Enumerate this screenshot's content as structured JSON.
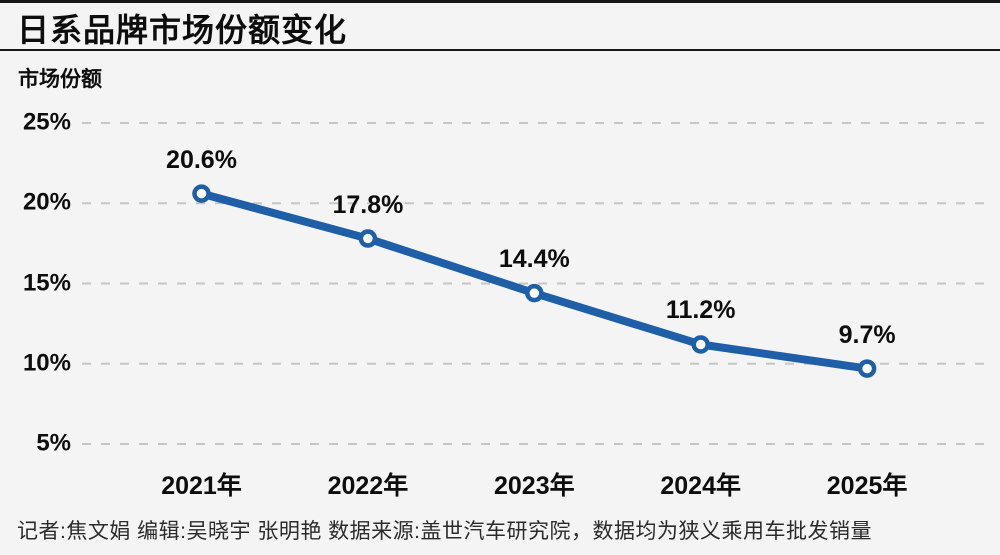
{
  "page": {
    "title": "日系品牌市场份额变化",
    "y_axis_title": "市场份额",
    "footer": "记者:焦文娟  编辑:吴晓宇 张明艳  数据来源:盖世汽车研究院，数据均为狭义乘用车批发销量"
  },
  "colors": {
    "background": "#f4f4f4",
    "text": "#0d0d0d",
    "line": "#1e5fa8",
    "marker_fill": "#ffffff",
    "grid": "#c6c6c6",
    "rule": "#171717",
    "footer_text": "#2b2b2b"
  },
  "chart_data": {
    "type": "line",
    "title": "日系品牌市场份额变化",
    "ylabel": "市场份额",
    "xlabel": "",
    "categories": [
      "2021年",
      "2022年",
      "2023年",
      "2024年",
      "2025年"
    ],
    "values": [
      20.6,
      17.8,
      14.4,
      11.2,
      9.7
    ],
    "value_labels": [
      "20.6%",
      "17.8%",
      "14.4%",
      "11.2%",
      "9.7%"
    ],
    "y_ticks": [
      25,
      20,
      15,
      10,
      5
    ],
    "y_tick_labels": [
      "25%",
      "20%",
      "15%",
      "10%",
      "5%"
    ],
    "ylim": [
      5,
      25
    ],
    "grid": "dashed-horizontal",
    "legend": "none"
  }
}
